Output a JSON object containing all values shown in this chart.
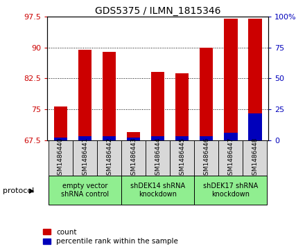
{
  "title": "GDS5375 / ILMN_1815346",
  "samples": [
    "GSM1486440",
    "GSM1486441",
    "GSM1486442",
    "GSM1486443",
    "GSM1486444",
    "GSM1486445",
    "GSM1486446",
    "GSM1486447",
    "GSM1486448"
  ],
  "count_values": [
    75.8,
    89.5,
    89.0,
    69.5,
    84.0,
    83.8,
    90.0,
    97.0,
    97.0
  ],
  "percentile_values": [
    2.5,
    3.5,
    3.5,
    2.5,
    3.5,
    3.5,
    3.5,
    6.0,
    22.0
  ],
  "ylim_left": [
    67.5,
    97.5
  ],
  "ylim_right": [
    0,
    100
  ],
  "yticks_left": [
    67.5,
    75.0,
    82.5,
    90.0,
    97.5
  ],
  "ytick_labels_left": [
    "67.5",
    "75",
    "82.5",
    "90",
    "97.5"
  ],
  "yticks_right": [
    0,
    25,
    50,
    75,
    100
  ],
  "ytick_labels_right": [
    "0",
    "25",
    "50",
    "75",
    "100%"
  ],
  "bar_color": "#cc0000",
  "percentile_color": "#0000bb",
  "bar_width": 0.55,
  "groups": [
    {
      "label": "empty vector\nshRNA control",
      "start": 0,
      "end": 2
    },
    {
      "label": "shDEK14 shRNA\nknockdown",
      "start": 3,
      "end": 5
    },
    {
      "label": "shDEK17 shRNA\nknockdown",
      "start": 6,
      "end": 8
    }
  ],
  "group_face_color": "#90ee90",
  "sample_box_color": "#d8d8d8",
  "protocol_label": "protocol",
  "legend_count_label": "count",
  "legend_percentile_label": "percentile rank within the sample",
  "title_fontsize": 10,
  "axis_label_color_left": "#cc0000",
  "axis_label_color_right": "#0000bb",
  "tick_fontsize": 8,
  "sample_fontsize": 6.5,
  "group_fontsize": 7
}
